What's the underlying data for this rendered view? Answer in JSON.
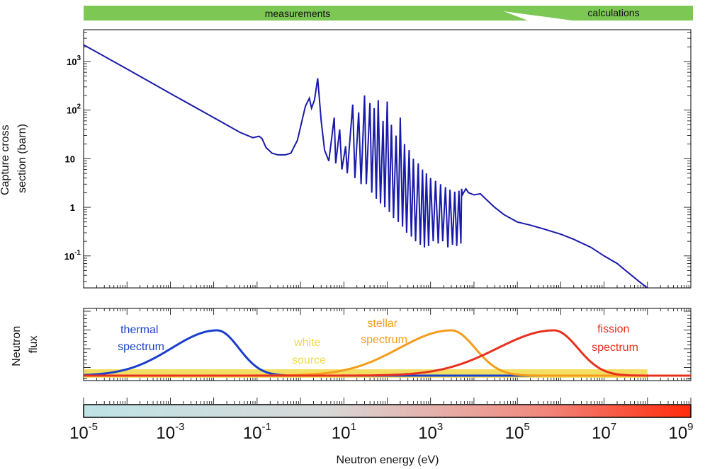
{
  "header": {
    "measurements_label": "measurements",
    "calculations_label": "calculations",
    "bar_color": "#7dc855"
  },
  "chart_data": [
    {
      "type": "line",
      "ylabel_lines": [
        "Capture cross",
        "section (barn)"
      ],
      "yscale": "log",
      "xscale": "log",
      "xlim": [
        1e-05,
        1000000000.0
      ],
      "ylim": [
        0.022,
        4500
      ],
      "yticks": [
        {
          "value": 1000,
          "base": "10",
          "exp": "3"
        },
        {
          "value": 100,
          "base": "10",
          "exp": "2"
        },
        {
          "value": 10,
          "base": "10",
          "exp": ""
        },
        {
          "value": 1,
          "base": "1",
          "exp": ""
        },
        {
          "value": 0.1,
          "base": "10",
          "exp": "-1"
        }
      ],
      "series": [
        {
          "color": "#1a1aaa",
          "points": [
            [
              1e-05,
              2200
            ],
            [
              0.0001,
              700
            ],
            [
              0.001,
              220
            ],
            [
              0.01,
              70
            ],
            [
              0.04,
              35
            ],
            [
              0.08,
              27
            ],
            [
              0.11,
              29
            ],
            [
              0.13,
              26
            ],
            [
              0.16,
              17
            ],
            [
              0.22,
              13
            ],
            [
              0.3,
              12
            ],
            [
              0.45,
              12
            ],
            [
              0.6,
              13
            ],
            [
              0.85,
              24
            ],
            [
              1.3,
              120
            ],
            [
              1.6,
              175
            ],
            [
              1.8,
              110
            ],
            [
              2.1,
              160
            ],
            [
              2.5,
              450
            ],
            [
              3.0,
              60
            ],
            [
              3.6,
              15
            ],
            [
              4.5,
              9
            ],
            [
              6.0,
              70
            ],
            [
              6.5,
              8
            ],
            [
              8.0,
              40
            ],
            [
              9.0,
              6
            ],
            [
              11,
              18
            ],
            [
              12,
              5
            ],
            [
              16,
              130
            ],
            [
              18,
              4
            ],
            [
              22,
              90
            ],
            [
              25,
              3
            ],
            [
              30,
              200
            ],
            [
              33,
              3
            ],
            [
              40,
              140
            ],
            [
              44,
              2
            ],
            [
              50,
              110
            ],
            [
              56,
              1.5
            ],
            [
              62,
              160
            ],
            [
              70,
              1.2
            ],
            [
              80,
              60
            ],
            [
              88,
              1.0
            ],
            [
              100,
              150
            ],
            [
              112,
              0.8
            ],
            [
              125,
              50
            ],
            [
              140,
              0.6
            ],
            [
              160,
              30
            ],
            [
              180,
              0.5
            ],
            [
              200,
              70
            ],
            [
              225,
              0.4
            ],
            [
              250,
              20
            ],
            [
              280,
              0.3
            ],
            [
              320,
              15
            ],
            [
              360,
              0.25
            ],
            [
              400,
              10
            ],
            [
              450,
              0.2
            ],
            [
              520,
              8
            ],
            [
              580,
              0.17
            ],
            [
              650,
              6
            ],
            [
              720,
              0.15
            ],
            [
              800,
              5
            ],
            [
              900,
              0.16
            ],
            [
              1000,
              4
            ],
            [
              1150,
              0.2
            ],
            [
              1300,
              3.5
            ],
            [
              1500,
              0.18
            ],
            [
              1700,
              3
            ],
            [
              1900,
              0.2
            ],
            [
              2200,
              2.6
            ],
            [
              2500,
              0.15
            ],
            [
              2800,
              2.3
            ],
            [
              3200,
              0.17
            ],
            [
              3600,
              2.1
            ],
            [
              4000,
              0.16
            ],
            [
              4500,
              2.2
            ],
            [
              5000,
              0.18
            ],
            [
              5200,
              2.4
            ],
            [
              5400,
              1.8
            ],
            [
              6500,
              2.4
            ],
            [
              7500,
              2.0
            ],
            [
              10000,
              1.8
            ],
            [
              14000,
              1.9
            ],
            [
              20000,
              1.4
            ],
            [
              30000,
              1.0
            ],
            [
              50000,
              0.7
            ],
            [
              100000.0,
              0.5
            ],
            [
              200000.0,
              0.43
            ],
            [
              400000.0,
              0.36
            ],
            [
              1000000.0,
              0.28
            ],
            [
              2000000.0,
              0.22
            ],
            [
              5000000.0,
              0.15
            ],
            [
              10000000.0,
              0.1
            ],
            [
              20000000.0,
              0.07
            ],
            [
              40000000.0,
              0.042
            ],
            [
              70000000.0,
              0.028
            ],
            [
              100000000.0,
              0.022
            ]
          ]
        }
      ]
    },
    {
      "type": "area",
      "ylabel_lines": [
        "Neutron",
        "flux"
      ],
      "xscale": "log",
      "xlim": [
        1e-05,
        1000000000.0
      ],
      "series": [
        {
          "name": "thermal spectrum",
          "label_lines": [
            "thermal",
            "spectrum"
          ],
          "color": "#1a3fcc",
          "peak_energy": 0.012,
          "peak_height": 1.0
        },
        {
          "name": "white source",
          "label_lines": [
            "white",
            "source"
          ],
          "color": "#f2d94a",
          "peak_energy": null,
          "peak_height": 0.12,
          "range": [
            1e-05,
            100000000.0
          ]
        },
        {
          "name": "stellar spectrum",
          "label_lines": [
            "stellar",
            "spectrum"
          ],
          "color": "#f59c1a",
          "peak_energy": 3000,
          "peak_height": 1.0
        },
        {
          "name": "fission spectrum",
          "label_lines": [
            "fission",
            "spectrum"
          ],
          "color": "#e8301e",
          "peak_energy": 700000,
          "peak_height": 1.0
        }
      ]
    },
    {
      "type": "colorbar",
      "xlabel": "Neutron energy (eV)",
      "xscale": "log",
      "xlim": [
        1e-05,
        1000000000.0
      ],
      "gradient": [
        "#bfe3e6",
        "#d8d8d8",
        "#f08a80",
        "#ff2a0a"
      ],
      "xticks": [
        {
          "value": 1e-05,
          "base": "10",
          "exp": "-5"
        },
        {
          "value": 0.001,
          "base": "10",
          "exp": "-3"
        },
        {
          "value": 0.1,
          "base": "10",
          "exp": "-1"
        },
        {
          "value": 10.0,
          "base": "10",
          "exp": "1"
        },
        {
          "value": 1000.0,
          "base": "10",
          "exp": "3"
        },
        {
          "value": 100000.0,
          "base": "10",
          "exp": "5"
        },
        {
          "value": 10000000.0,
          "base": "10",
          "exp": "7"
        },
        {
          "value": 1000000000.0,
          "base": "10",
          "exp": "9"
        }
      ]
    }
  ]
}
